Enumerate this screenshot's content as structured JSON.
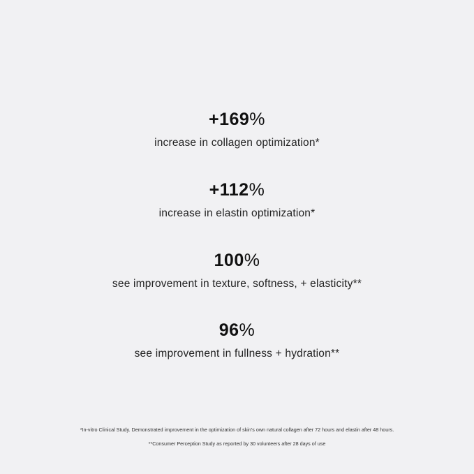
{
  "stats": [
    {
      "value": "+169",
      "unit": "%",
      "description": "increase in collagen optimization*"
    },
    {
      "value": "+112",
      "unit": "%",
      "description": "increase in elastin optimization*"
    },
    {
      "value": "100",
      "unit": "%",
      "description": "see improvement in texture, softness, + elasticity**"
    },
    {
      "value": "96",
      "unit": "%",
      "description": "see improvement in fullness + hydration**"
    }
  ],
  "footnotes": [
    "*In-vitro Clinical Study. Demonstrated improvement in the optimization of skin's own natural collagen after 72 hours and elastin after 48 hours.",
    "**Consumer Perception Study as reported by 30 volunteers after 28 days of use"
  ]
}
